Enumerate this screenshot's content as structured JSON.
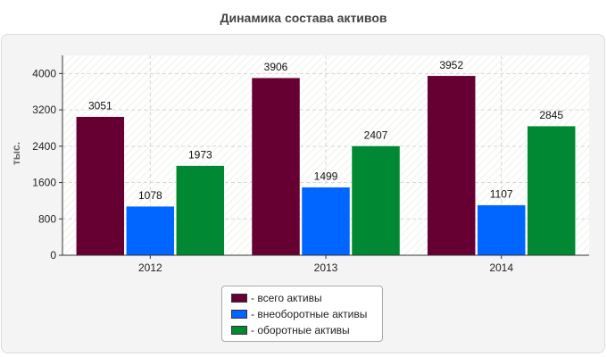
{
  "colors": {
    "total": "#660033",
    "noncurrent": "#0066ff",
    "current": "#008833"
  },
  "chart_data": {
    "type": "bar",
    "title": "Динамика состава активов",
    "ylabel": "тыс.",
    "xlabel": "",
    "categories": [
      "2012",
      "2013",
      "2014"
    ],
    "series": [
      {
        "name": "- всего активы",
        "color": "#660033",
        "values": [
          3051,
          3906,
          3952
        ]
      },
      {
        "name": "- внеоборотные активы",
        "color": "#0066ff",
        "values": [
          1078,
          1499,
          1107
        ]
      },
      {
        "name": "- оборотные активы",
        "color": "#008833",
        "values": [
          1973,
          2407,
          2845
        ]
      }
    ],
    "ylim": [
      0,
      4400
    ],
    "yticks": [
      "0",
      "800",
      "1600",
      "2400",
      "3200",
      "4000"
    ],
    "grid": true,
    "legend_position": "bottom"
  }
}
